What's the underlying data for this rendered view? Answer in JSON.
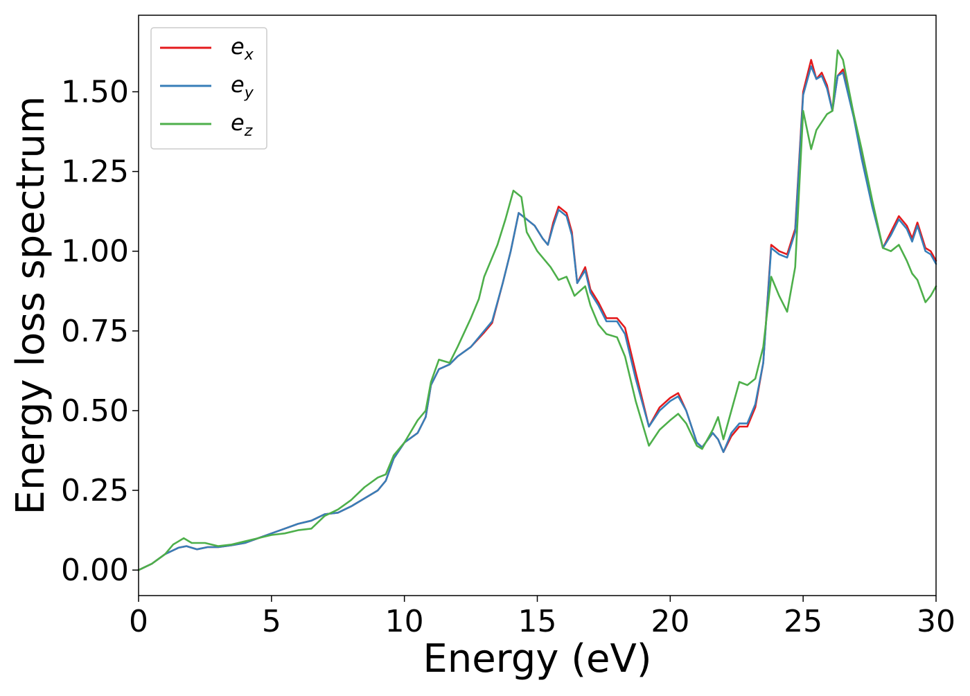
{
  "chart_data": {
    "type": "line",
    "xlabel": "Energy (eV)",
    "ylabel": "Energy loss spectrum",
    "xlim": [
      0,
      30
    ],
    "ylim": [
      -0.08,
      1.74
    ],
    "xticks": [
      "0",
      "5",
      "10",
      "15",
      "20",
      "25",
      "30"
    ],
    "yticks": [
      "0.00",
      "0.25",
      "0.50",
      "0.75",
      "1.00",
      "1.25",
      "1.50"
    ],
    "grid": false,
    "legend_position": "top-left",
    "series": [
      {
        "name": "e_x",
        "legend_base": "e",
        "legend_sub": "x",
        "color": "#e41a1c",
        "points": [
          [
            0,
            0
          ],
          [
            0.5,
            0.02
          ],
          [
            1,
            0.05
          ],
          [
            1.5,
            0.07
          ],
          [
            1.8,
            0.075
          ],
          [
            2.2,
            0.065
          ],
          [
            2.6,
            0.072
          ],
          [
            3,
            0.072
          ],
          [
            3.5,
            0.078
          ],
          [
            4,
            0.085
          ],
          [
            4.5,
            0.1
          ],
          [
            5,
            0.115
          ],
          [
            5.5,
            0.13
          ],
          [
            6,
            0.145
          ],
          [
            6.5,
            0.155
          ],
          [
            7,
            0.175
          ],
          [
            7.5,
            0.18
          ],
          [
            8,
            0.2
          ],
          [
            8.5,
            0.225
          ],
          [
            9,
            0.25
          ],
          [
            9.3,
            0.28
          ],
          [
            9.6,
            0.35
          ],
          [
            10,
            0.4
          ],
          [
            10.5,
            0.43
          ],
          [
            10.8,
            0.48
          ],
          [
            11,
            0.58
          ],
          [
            11.3,
            0.63
          ],
          [
            11.7,
            0.645
          ],
          [
            12,
            0.67
          ],
          [
            12.5,
            0.7
          ],
          [
            13,
            0.745
          ],
          [
            13.3,
            0.775
          ],
          [
            13.7,
            0.9
          ],
          [
            14,
            1.0
          ],
          [
            14.3,
            1.12
          ],
          [
            14.6,
            1.1
          ],
          [
            14.9,
            1.08
          ],
          [
            15.2,
            1.04
          ],
          [
            15.4,
            1.02
          ],
          [
            15.6,
            1.09
          ],
          [
            15.8,
            1.14
          ],
          [
            16.1,
            1.12
          ],
          [
            16.3,
            1.06
          ],
          [
            16.5,
            0.9
          ],
          [
            16.8,
            0.95
          ],
          [
            17,
            0.88
          ],
          [
            17.3,
            0.84
          ],
          [
            17.6,
            0.79
          ],
          [
            18,
            0.79
          ],
          [
            18.3,
            0.76
          ],
          [
            18.7,
            0.62
          ],
          [
            19.2,
            0.45
          ],
          [
            19.6,
            0.51
          ],
          [
            20,
            0.54
          ],
          [
            20.3,
            0.555
          ],
          [
            20.6,
            0.5
          ],
          [
            21,
            0.4
          ],
          [
            21.2,
            0.385
          ],
          [
            21.6,
            0.43
          ],
          [
            21.8,
            0.41
          ],
          [
            22,
            0.37
          ],
          [
            22.3,
            0.42
          ],
          [
            22.6,
            0.45
          ],
          [
            22.9,
            0.45
          ],
          [
            23.2,
            0.51
          ],
          [
            23.5,
            0.65
          ],
          [
            23.8,
            1.02
          ],
          [
            24.1,
            1.0
          ],
          [
            24.4,
            0.99
          ],
          [
            24.7,
            1.07
          ],
          [
            25,
            1.5
          ],
          [
            25.3,
            1.6
          ],
          [
            25.5,
            1.54
          ],
          [
            25.7,
            1.56
          ],
          [
            25.9,
            1.52
          ],
          [
            26.1,
            1.44
          ],
          [
            26.3,
            1.55
          ],
          [
            26.5,
            1.57
          ],
          [
            26.9,
            1.43
          ],
          [
            27.2,
            1.3
          ],
          [
            27.6,
            1.15
          ],
          [
            28,
            1.01
          ],
          [
            28.3,
            1.06
          ],
          [
            28.6,
            1.11
          ],
          [
            28.9,
            1.08
          ],
          [
            29.1,
            1.04
          ],
          [
            29.3,
            1.09
          ],
          [
            29.6,
            1.01
          ],
          [
            29.8,
            1.0
          ],
          [
            30,
            0.97
          ]
        ]
      },
      {
        "name": "e_y",
        "legend_base": "e",
        "legend_sub": "y",
        "color": "#377eb8",
        "points": [
          [
            0,
            0
          ],
          [
            0.5,
            0.02
          ],
          [
            1,
            0.05
          ],
          [
            1.5,
            0.07
          ],
          [
            1.8,
            0.075
          ],
          [
            2.2,
            0.065
          ],
          [
            2.6,
            0.072
          ],
          [
            3,
            0.072
          ],
          [
            3.5,
            0.078
          ],
          [
            4,
            0.085
          ],
          [
            4.5,
            0.1
          ],
          [
            5,
            0.115
          ],
          [
            5.5,
            0.13
          ],
          [
            6,
            0.145
          ],
          [
            6.5,
            0.155
          ],
          [
            7,
            0.175
          ],
          [
            7.5,
            0.18
          ],
          [
            8,
            0.2
          ],
          [
            8.5,
            0.225
          ],
          [
            9,
            0.25
          ],
          [
            9.3,
            0.28
          ],
          [
            9.6,
            0.35
          ],
          [
            10,
            0.4
          ],
          [
            10.5,
            0.43
          ],
          [
            10.8,
            0.48
          ],
          [
            11,
            0.58
          ],
          [
            11.3,
            0.63
          ],
          [
            11.7,
            0.645
          ],
          [
            12,
            0.67
          ],
          [
            12.5,
            0.7
          ],
          [
            13,
            0.75
          ],
          [
            13.3,
            0.78
          ],
          [
            13.7,
            0.9
          ],
          [
            14,
            1.0
          ],
          [
            14.3,
            1.12
          ],
          [
            14.6,
            1.1
          ],
          [
            14.9,
            1.08
          ],
          [
            15.2,
            1.04
          ],
          [
            15.4,
            1.02
          ],
          [
            15.6,
            1.08
          ],
          [
            15.8,
            1.13
          ],
          [
            16.1,
            1.11
          ],
          [
            16.3,
            1.05
          ],
          [
            16.5,
            0.9
          ],
          [
            16.8,
            0.94
          ],
          [
            17,
            0.87
          ],
          [
            17.3,
            0.83
          ],
          [
            17.6,
            0.78
          ],
          [
            18,
            0.78
          ],
          [
            18.3,
            0.74
          ],
          [
            18.7,
            0.6
          ],
          [
            19.2,
            0.45
          ],
          [
            19.6,
            0.5
          ],
          [
            20,
            0.53
          ],
          [
            20.3,
            0.545
          ],
          [
            20.6,
            0.5
          ],
          [
            21,
            0.4
          ],
          [
            21.2,
            0.385
          ],
          [
            21.6,
            0.43
          ],
          [
            21.8,
            0.41
          ],
          [
            22,
            0.37
          ],
          [
            22.3,
            0.43
          ],
          [
            22.6,
            0.46
          ],
          [
            22.9,
            0.46
          ],
          [
            23.2,
            0.52
          ],
          [
            23.5,
            0.65
          ],
          [
            23.8,
            1.01
          ],
          [
            24.1,
            0.99
          ],
          [
            24.4,
            0.98
          ],
          [
            24.7,
            1.06
          ],
          [
            25,
            1.49
          ],
          [
            25.3,
            1.58
          ],
          [
            25.5,
            1.54
          ],
          [
            25.7,
            1.55
          ],
          [
            25.9,
            1.51
          ],
          [
            26.1,
            1.44
          ],
          [
            26.3,
            1.55
          ],
          [
            26.5,
            1.56
          ],
          [
            26.9,
            1.42
          ],
          [
            27.2,
            1.29
          ],
          [
            27.6,
            1.14
          ],
          [
            28,
            1.01
          ],
          [
            28.3,
            1.05
          ],
          [
            28.6,
            1.1
          ],
          [
            28.9,
            1.07
          ],
          [
            29.1,
            1.03
          ],
          [
            29.3,
            1.08
          ],
          [
            29.6,
            1.0
          ],
          [
            29.8,
            0.99
          ],
          [
            30,
            0.96
          ]
        ]
      },
      {
        "name": "e_z",
        "legend_base": "e",
        "legend_sub": "z",
        "color": "#4daf4a",
        "points": [
          [
            0,
            0
          ],
          [
            0.5,
            0.02
          ],
          [
            1,
            0.05
          ],
          [
            1.3,
            0.08
          ],
          [
            1.7,
            0.1
          ],
          [
            2,
            0.085
          ],
          [
            2.5,
            0.085
          ],
          [
            3,
            0.075
          ],
          [
            3.5,
            0.08
          ],
          [
            4,
            0.09
          ],
          [
            4.5,
            0.1
          ],
          [
            5,
            0.11
          ],
          [
            5.5,
            0.115
          ],
          [
            6,
            0.125
          ],
          [
            6.5,
            0.13
          ],
          [
            7,
            0.17
          ],
          [
            7.5,
            0.19
          ],
          [
            8,
            0.22
          ],
          [
            8.5,
            0.26
          ],
          [
            9,
            0.29
          ],
          [
            9.3,
            0.3
          ],
          [
            9.6,
            0.36
          ],
          [
            10,
            0.4
          ],
          [
            10.5,
            0.47
          ],
          [
            10.8,
            0.5
          ],
          [
            11,
            0.59
          ],
          [
            11.3,
            0.66
          ],
          [
            11.7,
            0.65
          ],
          [
            12,
            0.7
          ],
          [
            12.5,
            0.79
          ],
          [
            12.8,
            0.85
          ],
          [
            13,
            0.92
          ],
          [
            13.5,
            1.02
          ],
          [
            13.8,
            1.1
          ],
          [
            14.1,
            1.19
          ],
          [
            14.4,
            1.17
          ],
          [
            14.6,
            1.06
          ],
          [
            15,
            1.0
          ],
          [
            15.5,
            0.95
          ],
          [
            15.8,
            0.91
          ],
          [
            16.1,
            0.92
          ],
          [
            16.4,
            0.86
          ],
          [
            16.8,
            0.89
          ],
          [
            17,
            0.83
          ],
          [
            17.3,
            0.77
          ],
          [
            17.6,
            0.74
          ],
          [
            18,
            0.73
          ],
          [
            18.3,
            0.67
          ],
          [
            18.7,
            0.53
          ],
          [
            19.2,
            0.39
          ],
          [
            19.6,
            0.44
          ],
          [
            20,
            0.47
          ],
          [
            20.3,
            0.49
          ],
          [
            20.6,
            0.46
          ],
          [
            21,
            0.39
          ],
          [
            21.2,
            0.38
          ],
          [
            21.6,
            0.44
          ],
          [
            21.8,
            0.48
          ],
          [
            22,
            0.41
          ],
          [
            22.3,
            0.5
          ],
          [
            22.6,
            0.59
          ],
          [
            22.9,
            0.58
          ],
          [
            23.2,
            0.6
          ],
          [
            23.5,
            0.7
          ],
          [
            23.8,
            0.92
          ],
          [
            24.1,
            0.86
          ],
          [
            24.4,
            0.81
          ],
          [
            24.7,
            0.95
          ],
          [
            25,
            1.44
          ],
          [
            25.3,
            1.32
          ],
          [
            25.5,
            1.38
          ],
          [
            25.9,
            1.43
          ],
          [
            26.1,
            1.44
          ],
          [
            26.3,
            1.63
          ],
          [
            26.5,
            1.6
          ],
          [
            26.9,
            1.43
          ],
          [
            27.2,
            1.32
          ],
          [
            27.6,
            1.16
          ],
          [
            28,
            1.01
          ],
          [
            28.3,
            1.0
          ],
          [
            28.6,
            1.02
          ],
          [
            28.9,
            0.97
          ],
          [
            29.1,
            0.93
          ],
          [
            29.3,
            0.91
          ],
          [
            29.6,
            0.84
          ],
          [
            29.8,
            0.86
          ],
          [
            30,
            0.89
          ]
        ]
      }
    ]
  }
}
